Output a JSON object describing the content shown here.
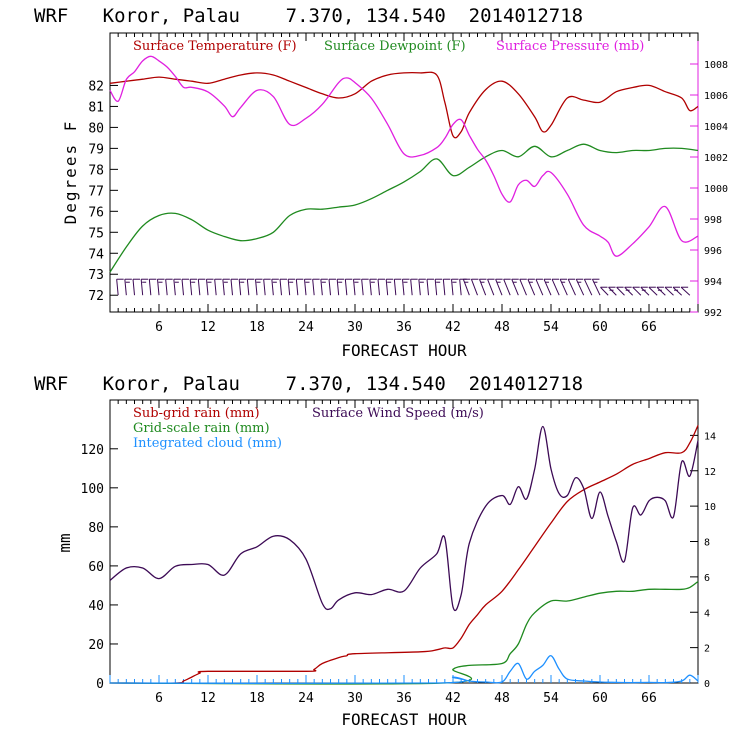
{
  "colors": {
    "temperature": "#b00000",
    "dewpoint": "#1f8a1f",
    "pressure": "#e020e0",
    "wind_barbs": "#3c0a55",
    "subgrid_rain": "#b00000",
    "grid_rain": "#1f8a1f",
    "cloud": "#1e90ff",
    "wind_speed": "#3c0a55",
    "axis": "#000000",
    "right_axis": "#e020e0"
  },
  "chart_data": [
    {
      "type": "line",
      "title": "WRF   Koror, Palau    7.370, 134.540  2014012718",
      "xlabel": "FORECAST HOUR",
      "ylabel": "Degrees F",
      "xlim": [
        0,
        72
      ],
      "ylim": [
        71.2,
        84.5
      ],
      "y2lim": [
        992,
        1010
      ],
      "x_ticks": [
        6,
        12,
        18,
        24,
        30,
        36,
        42,
        48,
        54,
        60,
        66
      ],
      "y_ticks": [
        72,
        73,
        74,
        75,
        76,
        77,
        78,
        79,
        80,
        81,
        82
      ],
      "y2_ticks": [
        992,
        994,
        996,
        998,
        1000,
        1002,
        1004,
        1006,
        1008
      ],
      "legend": [
        "Surface Temperature (F)",
        "Surface Dewpoint (F)",
        "Surface Pressure (mb)"
      ],
      "legend_position": "top",
      "series": [
        {
          "name": "Surface Temperature (F)",
          "axis": "left",
          "x": [
            0,
            2,
            4,
            6,
            8,
            10,
            12,
            14,
            16,
            18,
            20,
            22,
            24,
            26,
            28,
            30,
            32,
            34,
            36,
            38,
            40,
            41,
            42,
            43,
            44,
            46,
            48,
            50,
            52,
            53,
            54,
            56,
            58,
            60,
            62,
            64,
            66,
            68,
            70,
            71,
            72
          ],
          "y": [
            82.1,
            82.2,
            82.3,
            82.4,
            82.3,
            82.2,
            82.1,
            82.3,
            82.5,
            82.6,
            82.5,
            82.2,
            81.9,
            81.6,
            81.4,
            81.6,
            82.2,
            82.5,
            82.6,
            82.6,
            82.5,
            81.2,
            79.6,
            79.8,
            80.7,
            81.8,
            82.2,
            81.6,
            80.5,
            79.8,
            80.1,
            81.4,
            81.3,
            81.2,
            81.7,
            81.9,
            82,
            81.7,
            81.4,
            80.8,
            81
          ]
        },
        {
          "name": "Surface Dewpoint (F)",
          "axis": "left",
          "x": [
            0,
            2,
            4,
            6,
            8,
            10,
            12,
            14,
            16,
            18,
            20,
            22,
            24,
            26,
            28,
            30,
            32,
            34,
            36,
            38,
            40,
            42,
            44,
            46,
            48,
            50,
            52,
            54,
            56,
            58,
            60,
            62,
            64,
            66,
            68,
            70,
            72
          ],
          "y": [
            73.1,
            74.3,
            75.3,
            75.8,
            75.9,
            75.6,
            75.1,
            74.8,
            74.6,
            74.7,
            75,
            75.8,
            76.1,
            76.1,
            76.2,
            76.3,
            76.6,
            77,
            77.4,
            77.9,
            78.5,
            77.7,
            78.1,
            78.6,
            78.9,
            78.6,
            79.1,
            78.6,
            78.9,
            79.2,
            78.9,
            78.8,
            78.9,
            78.9,
            79,
            79,
            78.9
          ]
        },
        {
          "name": "Surface Pressure (mb)",
          "axis": "right",
          "x": [
            0,
            1,
            2,
            3,
            4,
            5,
            6,
            7,
            8,
            9,
            10,
            12,
            14,
            15,
            16,
            18,
            20,
            22,
            24,
            26,
            28,
            29,
            30,
            32,
            34,
            36,
            38,
            40,
            41,
            42,
            43,
            44,
            45,
            46,
            47,
            48,
            49,
            50,
            51,
            52,
            53,
            54,
            56,
            58,
            60,
            61,
            62,
            64,
            66,
            68,
            70,
            72
          ],
          "y": [
            1006.3,
            1005.6,
            1007,
            1007.5,
            1008.2,
            1008.5,
            1008.2,
            1007.8,
            1007.2,
            1006.5,
            1006.5,
            1006.2,
            1005.3,
            1004.6,
            1005.2,
            1006.3,
            1005.9,
            1004.1,
            1004.5,
            1005.4,
            1006.8,
            1007.1,
            1006.8,
            1005.8,
            1004.1,
            1002.2,
            1002.1,
            1002.6,
            1003.2,
            1004.1,
            1004.4,
            1003.4,
            1002.5,
            1001.8,
            1000.8,
            999.6,
            999.1,
            1000.2,
            1000.5,
            1000.1,
            1000.8,
            1001,
            999.6,
            997.6,
            996.9,
            996.5,
            995.6,
            996.4,
            997.5,
            998.8,
            996.6,
            996.9
          ]
        }
      ],
      "wind_barbs": {
        "present": true,
        "x_spacing_hours": 1,
        "note": "Wind barbs plotted hourly along the bottom of the panel"
      }
    },
    {
      "type": "line",
      "title": "WRF   Koror, Palau    7.370, 134.540  2014012718",
      "xlabel": "FORECAST HOUR",
      "ylabel": "mm",
      "xlim": [
        0,
        72
      ],
      "ylim": [
        0,
        145
      ],
      "y2lim": [
        0,
        16
      ],
      "x_ticks": [
        6,
        12,
        18,
        24,
        30,
        36,
        42,
        48,
        54,
        60,
        66
      ],
      "y_ticks": [
        0,
        20,
        40,
        60,
        80,
        100,
        120
      ],
      "y2_ticks": [
        0,
        2,
        4,
        6,
        8,
        10,
        12,
        14
      ],
      "legend": [
        "Sub-grid rain (mm)",
        "Surface Wind Speed (m/s)",
        "Grid-scale rain (mm)",
        "Integrated cloud (mm)"
      ],
      "legend_position": "top-left",
      "series": [
        {
          "name": "Sub-grid rain (mm)",
          "axis": "left",
          "x": [
            0,
            8,
            9,
            10,
            11,
            12,
            24,
            25,
            26,
            28,
            29,
            30,
            38,
            40,
            41,
            42,
            43,
            44,
            45,
            46,
            48,
            50,
            52,
            54,
            56,
            58,
            60,
            62,
            64,
            66,
            68,
            70,
            71,
            72
          ],
          "y": [
            0,
            0,
            1,
            3,
            5,
            6,
            6,
            7,
            10,
            13,
            14,
            15,
            16,
            17,
            18,
            18,
            23,
            30,
            35,
            40,
            47,
            58,
            70,
            82,
            93,
            99,
            103,
            107,
            112,
            115,
            118,
            118,
            123,
            132
          ]
        },
        {
          "name": "Grid-scale rain (mm)",
          "axis": "left",
          "x": [
            0,
            41,
            42,
            44,
            48,
            49,
            50,
            51,
            52,
            54,
            56,
            58,
            60,
            62,
            64,
            66,
            68,
            70,
            71,
            72
          ],
          "y": [
            0,
            0,
            7,
            9,
            10,
            15,
            20,
            30,
            36,
            42,
            42,
            44,
            46,
            47,
            47,
            48,
            48,
            48,
            49,
            52
          ]
        },
        {
          "name": "Integrated cloud (mm)",
          "axis": "left",
          "x": [
            0,
            40,
            42,
            44,
            46,
            48,
            49,
            50,
            51,
            52,
            53,
            54,
            55,
            56,
            58,
            60,
            62,
            64,
            66,
            68,
            70,
            71,
            72
          ],
          "y": [
            0,
            0,
            3,
            1,
            0.5,
            0.5,
            6,
            10,
            2,
            6,
            9,
            14,
            7,
            2,
            1,
            0.5,
            0.3,
            0.2,
            0.3,
            0.2,
            1,
            4,
            1
          ]
        },
        {
          "name": "Surface Wind Speed (m/s)",
          "axis": "right",
          "x": [
            0,
            2,
            4,
            6,
            8,
            10,
            12,
            14,
            16,
            18,
            20,
            22,
            24,
            26,
            27,
            28,
            30,
            32,
            34,
            36,
            38,
            40,
            41,
            42,
            43,
            44,
            46,
            48,
            49,
            50,
            51,
            52,
            53,
            54,
            55,
            56,
            57,
            58,
            59,
            60,
            61,
            62,
            63,
            64,
            65,
            66,
            67,
            68,
            69,
            70,
            71,
            72
          ],
          "y": [
            5.8,
            6.5,
            6.5,
            5.9,
            6.6,
            6.7,
            6.7,
            6.1,
            7.3,
            7.7,
            8.3,
            8.1,
            7,
            4.5,
            4.2,
            4.7,
            5.1,
            5,
            5.3,
            5.2,
            6.5,
            7.3,
            8.2,
            4.3,
            5,
            7.9,
            10,
            10.6,
            10.1,
            11.1,
            10.4,
            12.1,
            14.5,
            12.1,
            10.7,
            10.6,
            11.6,
            11,
            9.3,
            10.8,
            9.4,
            8,
            6.9,
            9.9,
            9.5,
            10.3,
            10.5,
            10.3,
            9.4,
            12.5,
            11.7,
            13.7
          ]
        }
      ]
    }
  ]
}
